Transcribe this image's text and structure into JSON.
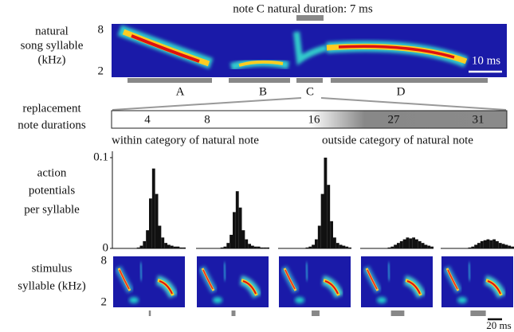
{
  "top": {
    "title": "note C natural duration: 7 ms",
    "ylabel": [
      "natural",
      "song syllable",
      "(kHz)"
    ],
    "yticks": [
      "8",
      "2"
    ],
    "scale_label": "10 ms",
    "notes": [
      "A",
      "B",
      "C",
      "D"
    ]
  },
  "replacement": {
    "label": [
      "replacement",
      "note durations"
    ],
    "durations": [
      4,
      8,
      16,
      27,
      31
    ],
    "within": "within category of natural note",
    "outside": "outside category of natural note"
  },
  "histograms": {
    "label": [
      "action",
      "potentials",
      "per syllable"
    ],
    "ylim": [
      0,
      0.1
    ],
    "yticks": [
      0,
      0.1
    ],
    "panels": [
      {
        "values": [
          0,
          0,
          0,
          0,
          0,
          0,
          0,
          0,
          0.001,
          0.003,
          0.008,
          0.02,
          0.055,
          0.088,
          0.06,
          0.025,
          0.012,
          0.006,
          0.004,
          0.003,
          0.002,
          0.002,
          0.001,
          0.001
        ]
      },
      {
        "values": [
          0,
          0,
          0,
          0,
          0,
          0,
          0,
          0,
          0.001,
          0.002,
          0.006,
          0.015,
          0.04,
          0.063,
          0.045,
          0.02,
          0.01,
          0.005,
          0.003,
          0.002,
          0.002,
          0.001,
          0.001,
          0.001
        ]
      },
      {
        "values": [
          0,
          0,
          0,
          0,
          0,
          0,
          0,
          0,
          0,
          0.001,
          0.002,
          0.004,
          0.01,
          0.025,
          0.06,
          0.1,
          0.07,
          0.03,
          0.012,
          0.006,
          0.004,
          0.003,
          0.002,
          0.001
        ]
      },
      {
        "values": [
          0,
          0,
          0,
          0,
          0,
          0,
          0,
          0,
          0,
          0.001,
          0.002,
          0.004,
          0.006,
          0.008,
          0.01,
          0.012,
          0.011,
          0.012,
          0.01,
          0.008,
          0.006,
          0.004,
          0.003,
          0.002
        ]
      },
      {
        "values": [
          0,
          0,
          0,
          0,
          0,
          0,
          0,
          0,
          0,
          0.001,
          0.002,
          0.004,
          0.006,
          0.008,
          0.009,
          0.01,
          0.009,
          0.01,
          0.008,
          0.006,
          0.005,
          0.004,
          0.003,
          0.002
        ]
      }
    ]
  },
  "stimulus": {
    "label": [
      "stimulus",
      "syllable (kHz)"
    ],
    "yticks": [
      "8",
      "2"
    ],
    "scale_label": "20 ms"
  }
}
